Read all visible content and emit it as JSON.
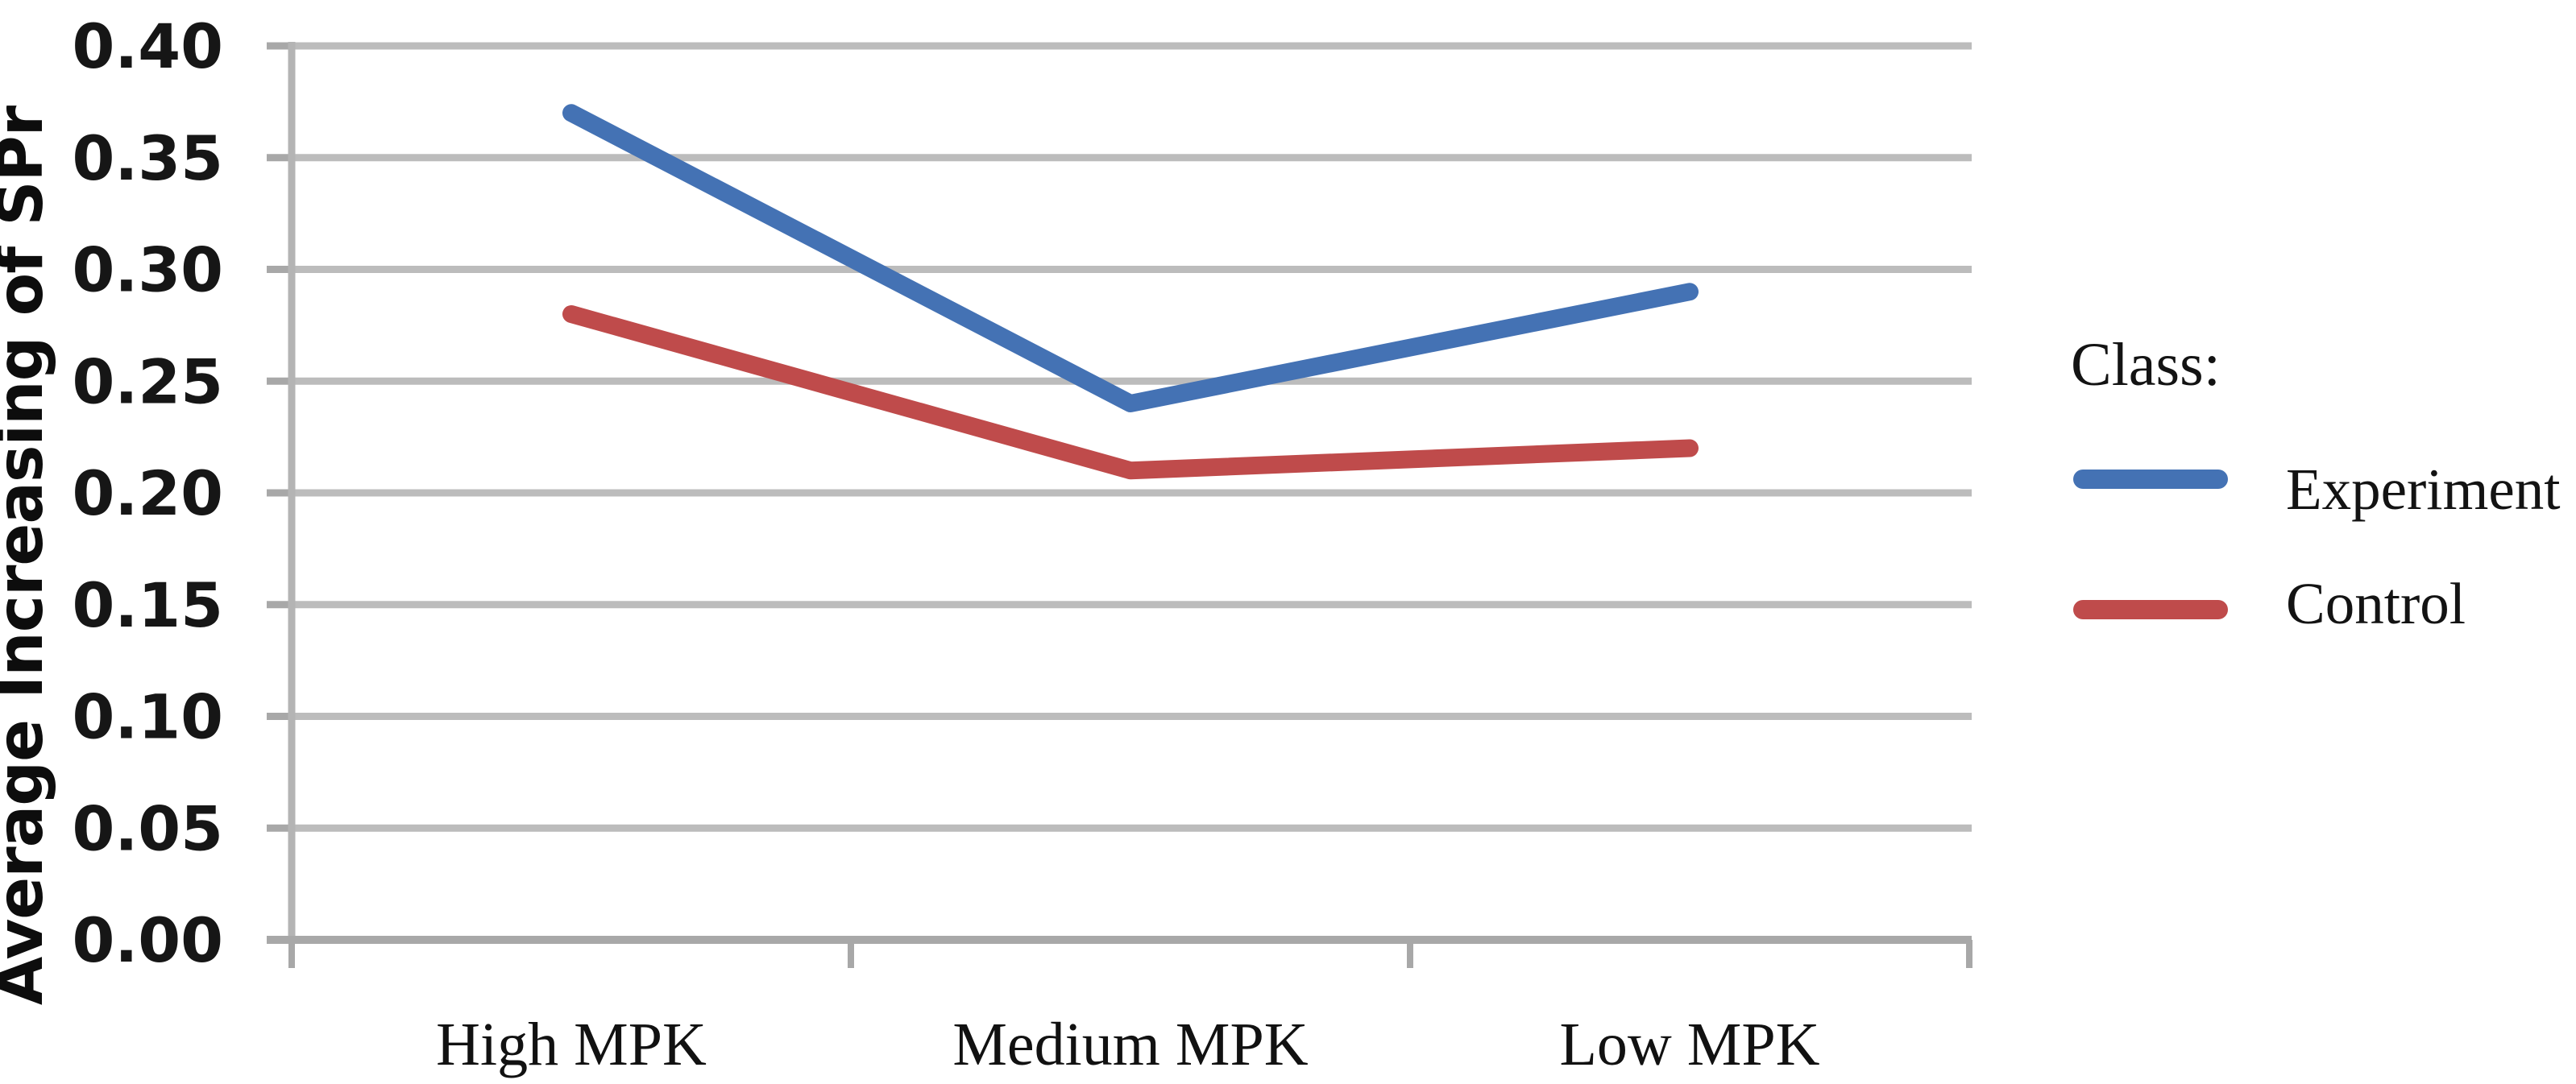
{
  "chart_data": {
    "type": "line",
    "title": "",
    "xlabel": "",
    "ylabel": "Average Increasing of SPr",
    "categories": [
      "High MPK",
      "Medium MPK",
      "Low MPK"
    ],
    "series": [
      {
        "name": "Experiment",
        "color": "#4472B4",
        "values": [
          0.37,
          0.24,
          0.29
        ]
      },
      {
        "name": "Control",
        "color": "#BF4B4B",
        "values": [
          0.28,
          0.21,
          0.22
        ]
      }
    ],
    "ylim": [
      0.0,
      0.4
    ],
    "ytick_step": 0.05,
    "ytick_labels": [
      "0.40",
      "0.35",
      "0.30",
      "0.25",
      "0.20",
      "0.15",
      "0.10",
      "0.05",
      "0.00"
    ],
    "grid": true,
    "legend": {
      "title": "Class:",
      "position": "right"
    }
  },
  "colors": {
    "gridline": "#BCBCBC",
    "axis": "#A8A8A8",
    "tick": "#A8A8A8",
    "background": "#FFFFFF"
  }
}
